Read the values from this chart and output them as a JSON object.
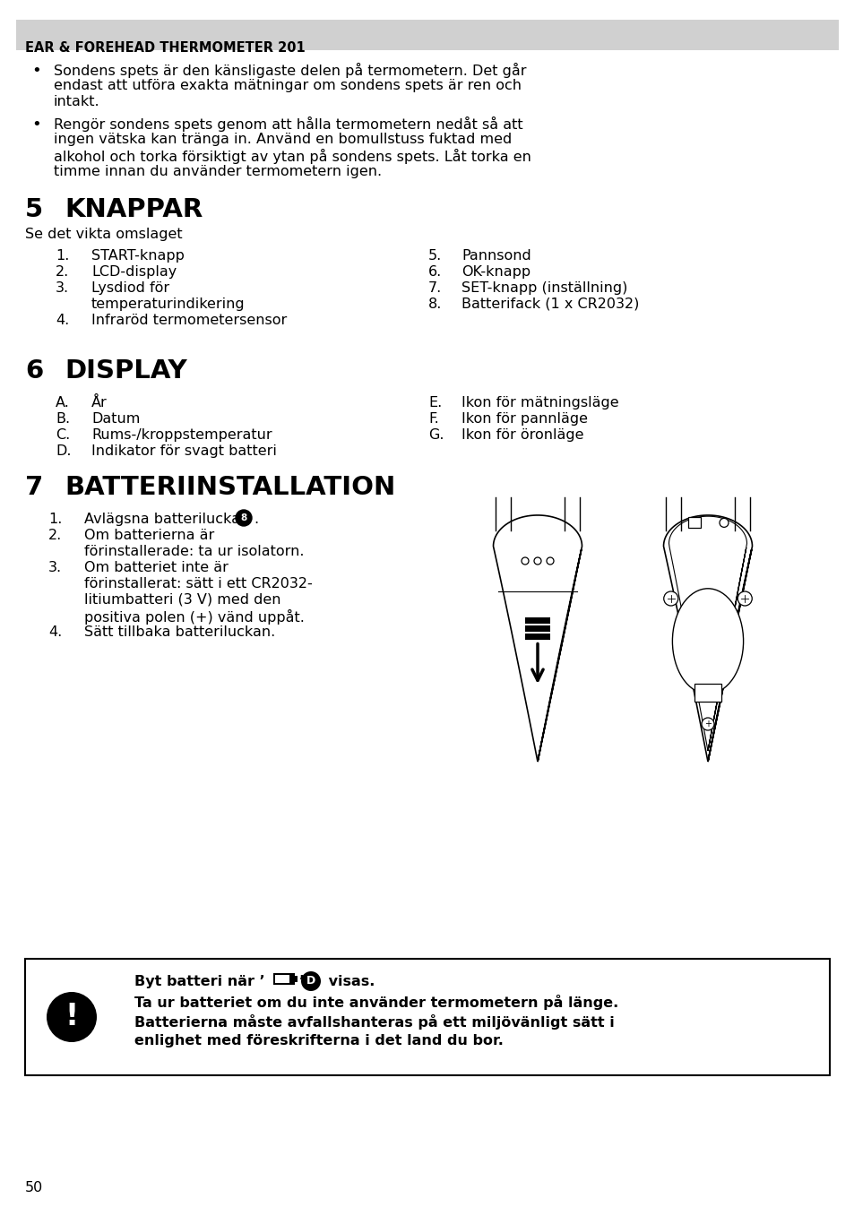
{
  "bg_color": "#ffffff",
  "header_bg": "#d3d3d3",
  "header_text": "EAR & FOREHEAD THERMOMETER 201",
  "section5_num": "5",
  "section5_title": "KNAPPAR",
  "section5_sub": "Se det vikta omslaget",
  "knappar_left": [
    [
      "1.",
      "START-knapp"
    ],
    [
      "2.",
      "LCD-display"
    ],
    [
      "3.",
      "Lysdiod för\ntemperaturindikering"
    ],
    [
      "4.",
      "Infraröd termometersensor"
    ]
  ],
  "knappar_right": [
    [
      "5.",
      "Pannsond"
    ],
    [
      "6.",
      "OK-knapp"
    ],
    [
      "7.",
      "SET-knapp (inställning)"
    ],
    [
      "8.",
      "Batterifack (1 x CR2032)"
    ]
  ],
  "section6_num": "6",
  "section6_title": "DISPLAY",
  "display_left": [
    [
      "A.",
      "År"
    ],
    [
      "B.",
      "Datum"
    ],
    [
      "C.",
      "Rums-/kroppstemperatur"
    ],
    [
      "D.",
      "Indikator för svagt batteri"
    ]
  ],
  "display_right": [
    [
      "E.",
      "Ikon för mätningsläge"
    ],
    [
      "F.",
      "Ikon för pannläge"
    ],
    [
      "G.",
      "Ikon för öronläge"
    ]
  ],
  "section7_num": "7",
  "section7_title": "BATTERIINSTALLATION",
  "warning_line2": "Ta ur batteriet om du inte använder termometern på länge.",
  "warning_line3": "Batterierna måste avfallshanteras på ett miljövänligt sätt i",
  "warning_line4": "enlighet med föreskrifterna i det land du bor.",
  "page_num": "50"
}
